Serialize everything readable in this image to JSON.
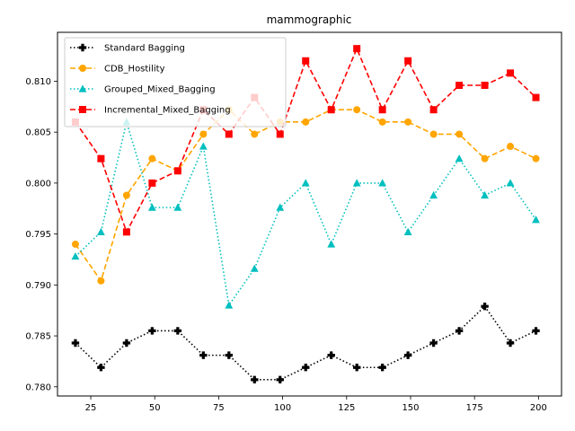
{
  "chart_data": {
    "type": "line",
    "title": "mammographic",
    "xlabel": "",
    "ylabel": "",
    "x": [
      19,
      29,
      39,
      49,
      59,
      69,
      79,
      89,
      99,
      109,
      119,
      129,
      139,
      149,
      159,
      169,
      179,
      189,
      199
    ],
    "xlim": [
      12,
      209
    ],
    "ylim": [
      0.7791,
      0.8148
    ],
    "xticks": [
      25,
      50,
      75,
      100,
      125,
      150,
      175,
      200
    ],
    "xtick_labels": [
      "25",
      "50",
      "75",
      "100",
      "125",
      "150",
      "175",
      "200"
    ],
    "yticks": [
      0.78,
      0.785,
      0.79,
      0.795,
      0.8,
      0.805,
      0.81
    ],
    "ytick_labels": [
      "0.780",
      "0.785",
      "0.790",
      "0.795",
      "0.800",
      "0.805",
      "0.810"
    ],
    "grid": false,
    "legend_position": "top-left",
    "series": [
      {
        "name": "Standard Bagging",
        "color": "#000000",
        "linestyle": "dotted",
        "marker": "plus",
        "values": [
          0.7843,
          0.7819,
          0.7843,
          0.7855,
          0.7855,
          0.7831,
          0.7831,
          0.7807,
          0.7807,
          0.7819,
          0.7831,
          0.7819,
          0.7819,
          0.7831,
          0.7843,
          0.7855,
          0.7879,
          0.7843,
          0.7855
        ]
      },
      {
        "name": "CDB_Hostility",
        "color": "#ffa500",
        "linestyle": "dashed",
        "marker": "circle",
        "values": [
          0.794,
          0.7904,
          0.7988,
          0.8024,
          0.8012,
          0.8048,
          0.8072,
          0.8048,
          0.806,
          0.806,
          0.8072,
          0.8072,
          0.806,
          0.806,
          0.8048,
          0.8048,
          0.8024,
          0.8036,
          0.8024
        ]
      },
      {
        "name": "Grouped_Mixed_Bagging",
        "color": "#00bfbf",
        "linestyle": "dotted",
        "marker": "triangle",
        "values": [
          0.7928,
          0.7952,
          0.806,
          0.7976,
          0.7976,
          0.8036,
          0.788,
          0.7916,
          0.7976,
          0.8,
          0.794,
          0.8,
          0.8,
          0.7952,
          0.7988,
          0.8024,
          0.7988,
          0.8,
          0.7964
        ]
      },
      {
        "name": "Incremental_Mixed_Bagging",
        "color": "#ff0000",
        "linestyle": "dashed",
        "marker": "square",
        "values": [
          0.806,
          0.8024,
          0.7952,
          0.8,
          0.8012,
          0.8072,
          0.8048,
          0.8084,
          0.8048,
          0.812,
          0.8072,
          0.8132,
          0.8072,
          0.812,
          0.8072,
          0.8096,
          0.8096,
          0.8108,
          0.8084
        ]
      }
    ]
  }
}
